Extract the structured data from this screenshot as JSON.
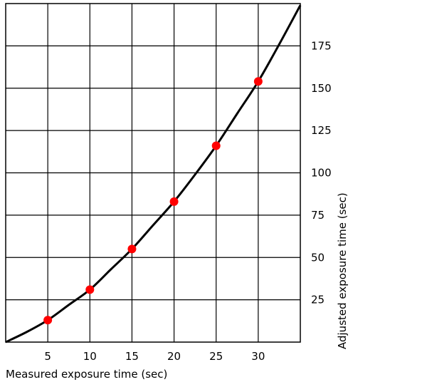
{
  "chart_data": {
    "type": "scatter",
    "xlabel": "Measured exposure time (sec)",
    "ylabel": "Adjusted exposure time (sec)",
    "xlim": [
      0,
      35
    ],
    "ylim": [
      0,
      200
    ],
    "x_ticks": [
      "5",
      "10",
      "15",
      "20",
      "25",
      "30"
    ],
    "y_ticks": [
      "25",
      "50",
      "75",
      "100",
      "125",
      "150",
      "175"
    ],
    "grid": true,
    "y_axis_side": "right",
    "curve": {
      "x": [
        0,
        2.5,
        5,
        7.5,
        10,
        12.5,
        15,
        17.5,
        20,
        22.5,
        25,
        27.5,
        30,
        32.5,
        35
      ],
      "y": [
        0,
        6,
        13,
        22,
        31,
        43,
        55,
        69,
        83,
        99,
        116,
        135,
        154,
        176,
        199
      ]
    },
    "points": {
      "x": [
        5,
        10,
        15,
        20,
        25,
        30
      ],
      "y": [
        13,
        31,
        55,
        83,
        116,
        154
      ]
    },
    "colors": {
      "points": "#ff0000",
      "curve": "#000000",
      "grid": "#000000"
    }
  }
}
